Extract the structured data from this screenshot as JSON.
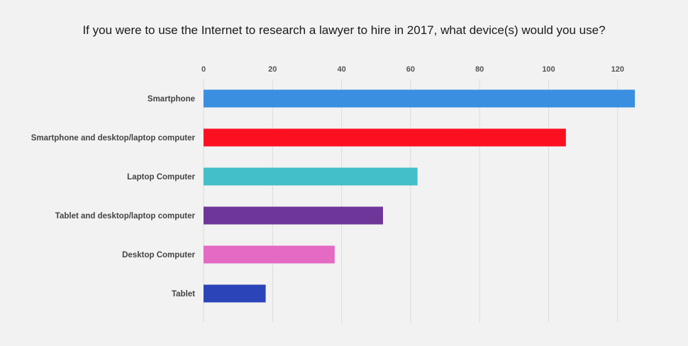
{
  "chart_data": {
    "type": "bar",
    "orientation": "horizontal",
    "title": "If you were to use the Internet to research a lawyer to hire in 2017, what device(s) would you use?",
    "xlabel": "",
    "ylabel": "",
    "categories": [
      "Smartphone",
      "Smartphone and desktop/laptop computer",
      "Laptop Computer",
      "Tablet and desktop/laptop computer",
      "Desktop Computer",
      "Tablet"
    ],
    "values": [
      125,
      105,
      62,
      52,
      38,
      18
    ],
    "colors": [
      "#3a8fe0",
      "#fc1020",
      "#42bfc8",
      "#6e3699",
      "#e46ac4",
      "#2b45b8"
    ],
    "xlim": [
      0,
      130
    ],
    "xticks": [
      0,
      20,
      40,
      60,
      80,
      100,
      120
    ],
    "axis_position": "top",
    "grid": true,
    "legend": "none"
  }
}
